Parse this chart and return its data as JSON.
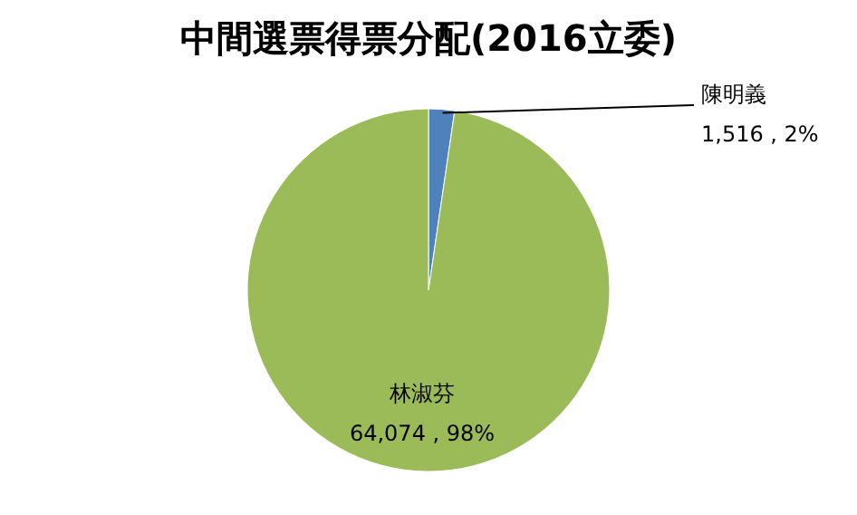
{
  "chart_data": {
    "type": "pie",
    "title": "中間選票得票分配(2016立委)",
    "categories": [
      "陳明義",
      "林淑芬"
    ],
    "values": [
      1516,
      64074
    ],
    "colors": [
      "#4f81bd",
      "#9bbb59"
    ],
    "value_labels": [
      "1,516 , 2%",
      "64,074 , 98%"
    ],
    "legend": false
  }
}
